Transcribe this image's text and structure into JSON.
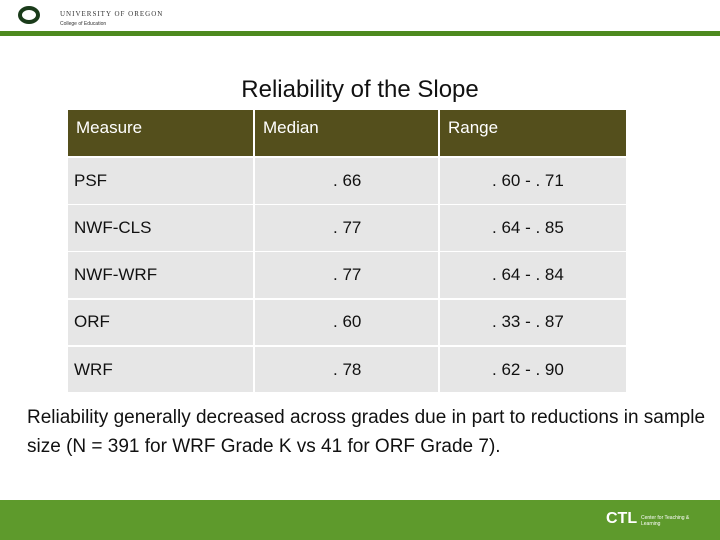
{
  "header": {
    "institution": "UNIVERSITY OF OREGON",
    "college": "College of Education"
  },
  "title": "Reliability of the Slope",
  "table": {
    "columns": [
      "Measure",
      "Median",
      "Range"
    ],
    "rows": [
      [
        "PSF",
        ". 66",
        ". 60 - . 71"
      ],
      [
        "NWF-CLS",
        ". 77",
        ". 64 - . 85"
      ],
      [
        "NWF-WRF",
        ". 77",
        ". 64 - . 84"
      ],
      [
        "ORF",
        ". 60",
        ". 33 - . 87"
      ],
      [
        "WRF",
        ". 78",
        ". 62 - . 90"
      ]
    ]
  },
  "caption": "Reliability generally decreased across grades due in part to reductions in sample size (N = 391 for WRF Grade K vs 41 for ORF Grade 7).",
  "footer": {
    "logo": "CTL",
    "center": "Center for Teaching & Learning"
  }
}
